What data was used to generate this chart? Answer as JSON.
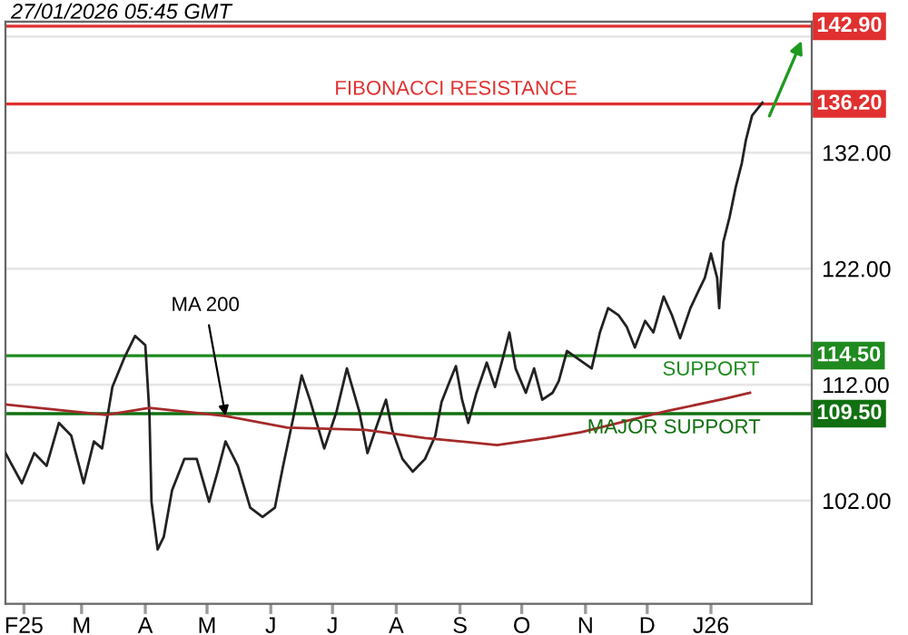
{
  "chart_data": {
    "type": "line",
    "title": "27/01/2026 05:45 GMT",
    "xlim": [
      "2025-01-23",
      "2026-02-19"
    ],
    "xticks": [
      {
        "value": "2025-02-01",
        "label": "F25"
      },
      {
        "value": "2025-03-01",
        "label": "M"
      },
      {
        "value": "2025-04-01",
        "label": "A"
      },
      {
        "value": "2025-05-01",
        "label": "M"
      },
      {
        "value": "2025-06-01",
        "label": "J"
      },
      {
        "value": "2025-07-01",
        "label": "J"
      },
      {
        "value": "2025-08-01",
        "label": "A"
      },
      {
        "value": "2025-09-01",
        "label": "S"
      },
      {
        "value": "2025-10-01",
        "label": "O"
      },
      {
        "value": "2025-11-01",
        "label": "N"
      },
      {
        "value": "2025-12-01",
        "label": "D"
      },
      {
        "value": "2026-01-01",
        "label": "J26"
      }
    ],
    "ylim": [
      93.1,
      143.3
    ],
    "yticks": [
      {
        "value": 102,
        "label": "102.00"
      },
      {
        "value": 112,
        "label": "112.00"
      },
      {
        "value": 122,
        "label": "122.00"
      },
      {
        "value": 132,
        "label": "132.00"
      },
      {
        "value": 142,
        "label": null
      }
    ],
    "grid": "y",
    "series": [
      {
        "color": "#222222",
        "x": [
          "2025-01-23",
          "2025-01-31",
          "2025-02-06",
          "2025-02-12",
          "2025-02-18",
          "2025-02-24",
          "2025-03-02",
          "2025-03-07",
          "2025-03-11",
          "2025-03-16",
          "2025-03-22",
          "2025-03-27",
          "2025-04-01",
          "2025-04-03",
          "2025-04-04",
          "2025-04-07",
          "2025-04-10",
          "2025-04-14",
          "2025-04-20",
          "2025-04-26",
          "2025-05-02",
          "2025-05-06",
          "2025-05-10",
          "2025-05-16",
          "2025-05-22",
          "2025-05-28",
          "2025-06-03",
          "2025-06-07",
          "2025-06-12",
          "2025-06-16",
          "2025-06-20",
          "2025-06-27",
          "2025-07-03",
          "2025-07-08",
          "2025-07-14",
          "2025-07-18",
          "2025-07-23",
          "2025-07-27",
          "2025-07-30",
          "2025-08-04",
          "2025-08-09",
          "2025-08-15",
          "2025-08-20",
          "2025-08-23",
          "2025-08-27",
          "2025-08-30",
          "2025-09-02",
          "2025-09-05",
          "2025-09-09",
          "2025-09-14",
          "2025-09-18",
          "2025-09-22",
          "2025-09-25",
          "2025-09-28",
          "2025-10-03",
          "2025-10-07",
          "2025-10-11",
          "2025-10-16",
          "2025-10-19",
          "2025-10-23",
          "2025-10-27",
          "2025-11-04",
          "2025-11-08",
          "2025-11-12",
          "2025-11-17",
          "2025-11-21",
          "2025-11-25",
          "2025-11-30",
          "2025-12-04",
          "2025-12-09",
          "2025-12-13",
          "2025-12-17",
          "2025-12-22",
          "2025-12-26",
          "2025-12-29",
          "2026-01-01",
          "2026-01-04",
          "2026-01-05",
          "2026-01-07",
          "2026-01-10",
          "2026-01-13",
          "2026-01-16",
          "2026-01-18",
          "2026-01-21",
          "2026-01-26"
        ],
        "values": [
          106.1,
          103.5,
          106.1,
          105.0,
          108.7,
          107.6,
          103.5,
          107.1,
          106.5,
          111.8,
          114.4,
          116.2,
          115.4,
          109.5,
          101.9,
          97.8,
          98.9,
          102.9,
          105.6,
          105.6,
          101.9,
          104.4,
          107.1,
          105.0,
          101.4,
          100.6,
          101.4,
          105.0,
          109.2,
          112.8,
          110.7,
          106.5,
          109.7,
          113.4,
          109.7,
          106.1,
          108.7,
          110.7,
          108.1,
          105.6,
          104.5,
          105.6,
          107.6,
          110.5,
          112.3,
          113.6,
          110.7,
          108.7,
          111.3,
          113.9,
          111.8,
          114.4,
          116.5,
          113.4,
          111.3,
          113.4,
          110.7,
          111.3,
          112.3,
          114.9,
          114.4,
          113.4,
          116.5,
          118.6,
          118.0,
          117.0,
          115.2,
          117.5,
          116.5,
          119.6,
          118.0,
          116.0,
          118.6,
          120.1,
          121.2,
          123.3,
          121.2,
          118.6,
          124.3,
          126.4,
          129.0,
          131.1,
          133.1,
          135.2,
          136.3
        ]
      },
      {
        "color": "#a52a2a",
        "x": [
          "2025-01-23",
          "2025-03-13",
          "2025-04-03",
          "2025-05-10",
          "2025-06-09",
          "2025-07-17",
          "2025-08-15",
          "2025-09-19",
          "2025-10-13",
          "2025-10-30",
          "2025-12-10",
          "2026-01-08",
          "2026-01-20"
        ],
        "values": [
          110.3,
          109.4,
          110.0,
          109.3,
          108.3,
          108.1,
          107.4,
          106.8,
          107.4,
          107.9,
          109.7,
          110.8,
          111.3
        ]
      }
    ],
    "ref_lines": [
      {
        "axis": "y",
        "value": 142.9,
        "label": "142.90",
        "color": "#e03030"
      },
      {
        "axis": "y",
        "value": 136.2,
        "label": "136.20",
        "color": "#e03030"
      },
      {
        "axis": "y",
        "value": 114.5,
        "label": "114.50",
        "color": "#1f8a1f"
      },
      {
        "axis": "y",
        "value": 109.5,
        "label": "109.50",
        "color": "#117011"
      }
    ],
    "annotations": [
      {
        "text": "MA 200",
        "x": "2025-05-10",
        "y": 109.3
      },
      {
        "text": "FIBONACCI RESISTANCE",
        "x": "2025-08-30",
        "y": 136.2
      },
      {
        "text": "SUPPORT",
        "x": "2026-01-01",
        "y": 114.5
      },
      {
        "text": "MAJOR SUPPORT",
        "x": "2025-12-14",
        "y": 109.5
      }
    ]
  }
}
